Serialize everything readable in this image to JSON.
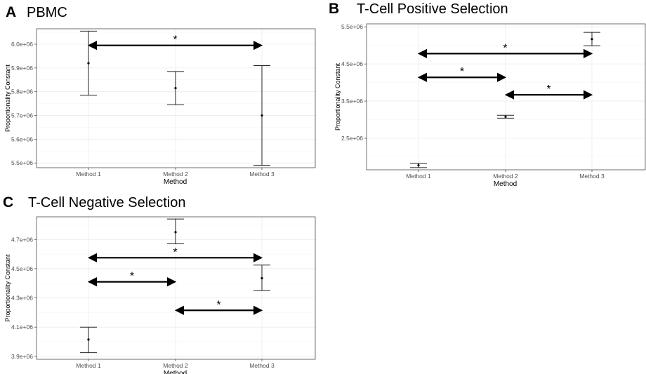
{
  "chart_data": [
    {
      "type": "errorbar",
      "panel": "A",
      "title": "PBMC",
      "xlabel": "Method",
      "ylabel": "Proportionality Constant",
      "categories": [
        "Method 1",
        "Method 2",
        "Method 3"
      ],
      "y_ticks": [
        5500000,
        5600000,
        5700000,
        5800000,
        5900000,
        6000000
      ],
      "y_tick_labels": [
        "5.5e+06",
        "5.6e+06",
        "5.7e+06",
        "5.8e+06",
        "5.9e+06",
        "6.0e+06"
      ],
      "ylim": [
        5480000,
        6065000
      ],
      "series": [
        {
          "name": "Method 1",
          "mean": 5920000,
          "lower": 5785000,
          "upper": 6055000
        },
        {
          "name": "Method 2",
          "mean": 5815000,
          "lower": 5745000,
          "upper": 5885000
        },
        {
          "name": "Method 3",
          "mean": 5700000,
          "lower": 5490000,
          "upper": 5910000
        }
      ],
      "significance": [
        {
          "from": "Method 1",
          "to": "Method 3",
          "y": 5995000,
          "label": "*"
        }
      ]
    },
    {
      "type": "errorbar",
      "panel": "B",
      "title": "T-Cell Positive Selection",
      "xlabel": "Method",
      "ylabel": "Proportionality Constant",
      "categories": [
        "Method 1",
        "Method 2",
        "Method 3"
      ],
      "y_ticks": [
        2500000,
        3500000,
        4500000,
        5500000
      ],
      "y_tick_labels": [
        "2.5e+06",
        "3.5e+06",
        "4.5e+06",
        "5.5e+06"
      ],
      "ylim": [
        1650000,
        5580000
      ],
      "series": [
        {
          "name": "Method 1",
          "mean": 1770000,
          "lower": 1710000,
          "upper": 1830000
        },
        {
          "name": "Method 2",
          "mean": 3080000,
          "lower": 3040000,
          "upper": 3120000
        },
        {
          "name": "Method 3",
          "mean": 5170000,
          "lower": 4990000,
          "upper": 5350000
        }
      ],
      "significance": [
        {
          "from": "Method 1",
          "to": "Method 3",
          "y": 4780000,
          "label": "*"
        },
        {
          "from": "Method 1",
          "to": "Method 2",
          "y": 4140000,
          "label": "*"
        },
        {
          "from": "Method 2",
          "to": "Method 3",
          "y": 3670000,
          "label": "*"
        }
      ]
    },
    {
      "type": "errorbar",
      "panel": "C",
      "title": "T-Cell Negative Selection",
      "xlabel": "Method",
      "ylabel": "Proportionality Constant",
      "categories": [
        "Method 1",
        "Method 2",
        "Method 3"
      ],
      "y_ticks": [
        3900000,
        4100000,
        4300000,
        4500000,
        4700000
      ],
      "y_tick_labels": [
        "3.9e+06",
        "4.1e+06",
        "4.3e+06",
        "4.5e+06",
        "4.7e+06"
      ],
      "ylim": [
        3880000,
        4855000
      ],
      "series": [
        {
          "name": "Method 1",
          "mean": 4015000,
          "lower": 3925000,
          "upper": 4100000
        },
        {
          "name": "Method 2",
          "mean": 4750000,
          "lower": 4670000,
          "upper": 4840000
        },
        {
          "name": "Method 3",
          "mean": 4435000,
          "lower": 4350000,
          "upper": 4525000
        }
      ],
      "significance": [
        {
          "from": "Method 1",
          "to": "Method 3",
          "y": 4575000,
          "label": "*"
        },
        {
          "from": "Method 1",
          "to": "Method 2",
          "y": 4410000,
          "label": "*"
        },
        {
          "from": "Method 2",
          "to": "Method 3",
          "y": 4215000,
          "label": "*"
        }
      ]
    }
  ]
}
